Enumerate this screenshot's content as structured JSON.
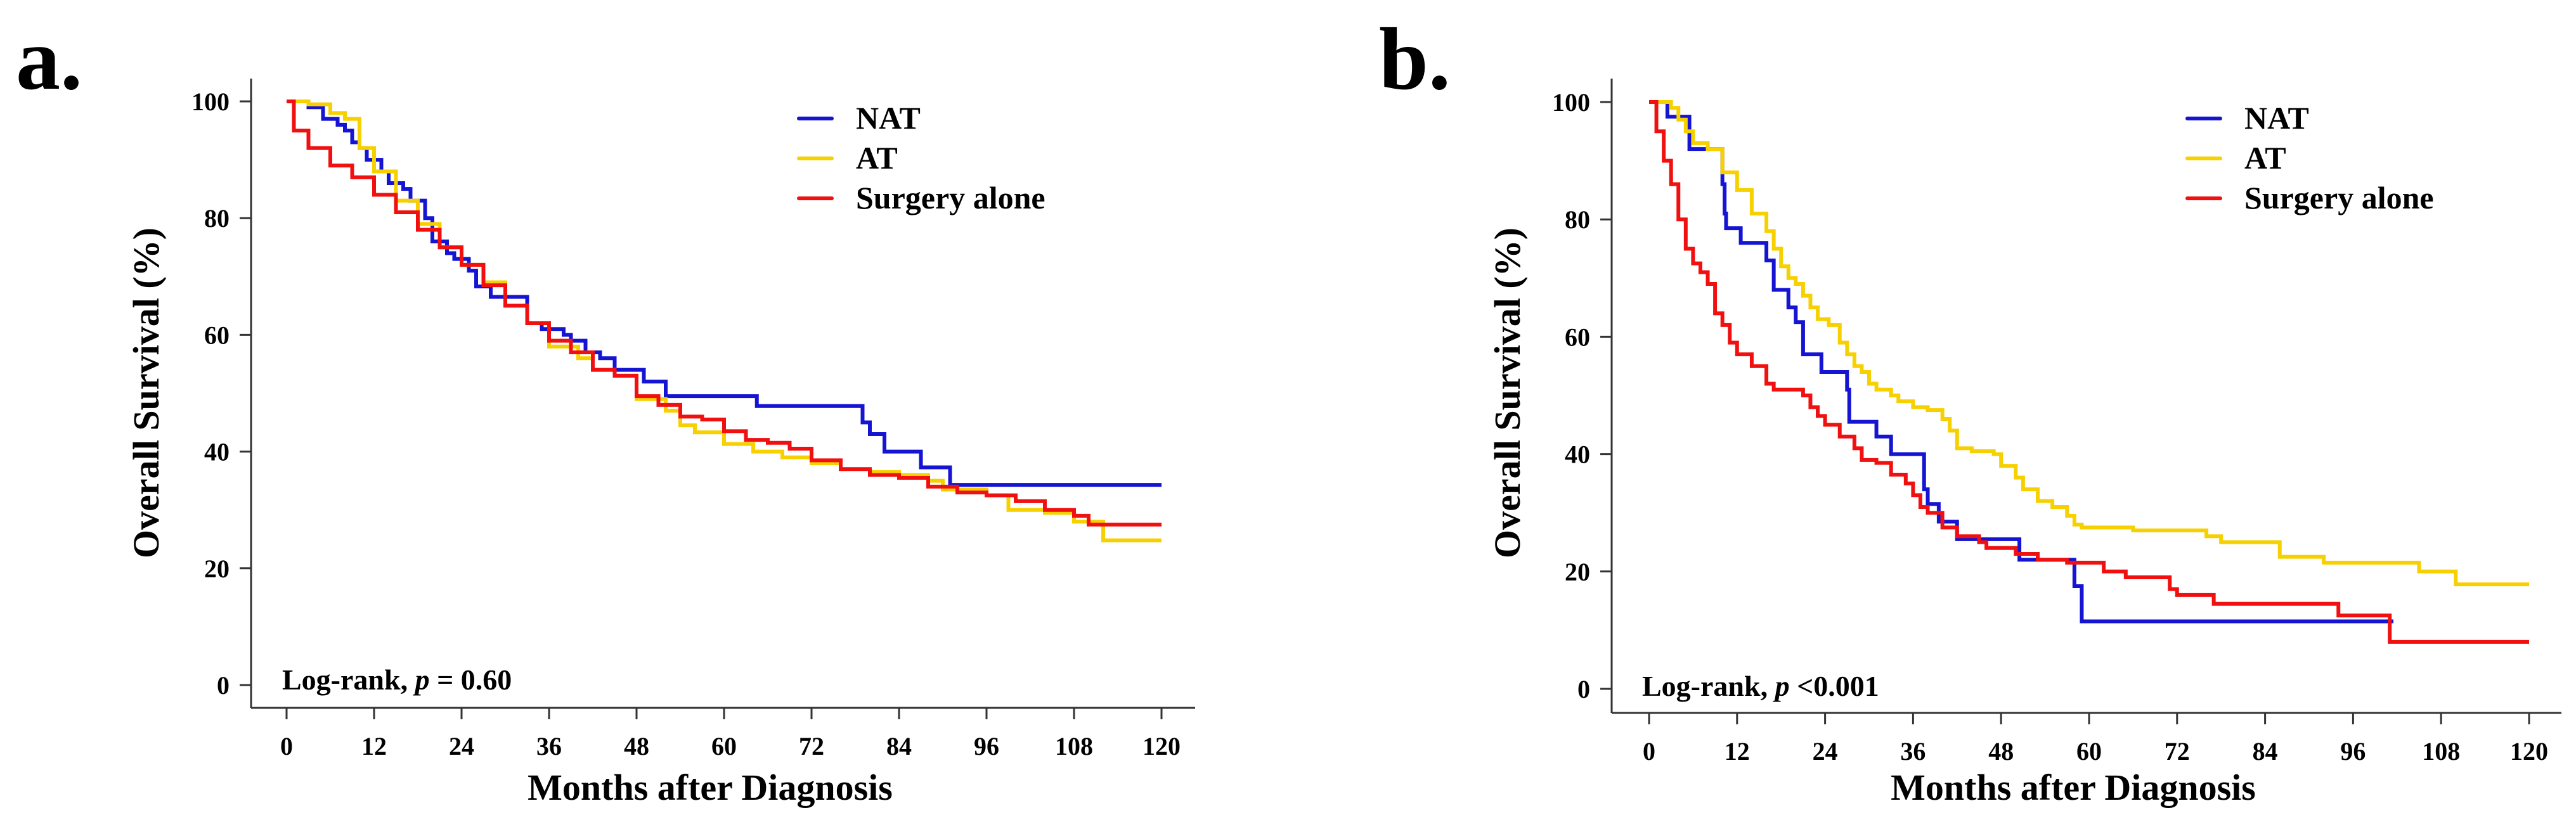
{
  "colors": {
    "NAT": "#1414d2",
    "AT": "#f7d000",
    "Surgery alone": "#f01010",
    "axis": "#333333"
  },
  "chart_data": [
    {
      "type": "line",
      "panel_label": "a.",
      "title": "",
      "xlabel": "Months after Diagnosis",
      "ylabel": "Overall Survival (%)",
      "xlim": [
        0,
        120
      ],
      "ylim": [
        0,
        100
      ],
      "xticks": [
        0,
        12,
        24,
        36,
        48,
        60,
        72,
        84,
        96,
        108,
        120
      ],
      "yticks": [
        0,
        20,
        40,
        60,
        80,
        100
      ],
      "grid": false,
      "legend_position": "top-right",
      "annotation": {
        "prefix": "Log-rank, ",
        "p": "p",
        "suffix": " = 0.60"
      },
      "series": [
        {
          "name": "NAT",
          "step": true,
          "points": [
            [
              0,
              100
            ],
            [
              2.5,
              100
            ],
            [
              3,
              99
            ],
            [
              5,
              97
            ],
            [
              7,
              96
            ],
            [
              8,
              95
            ],
            [
              9,
              93
            ],
            [
              10,
              92
            ],
            [
              11,
              90
            ],
            [
              13,
              88
            ],
            [
              14,
              86
            ],
            [
              16,
              85
            ],
            [
              17,
              83
            ],
            [
              19,
              80
            ],
            [
              20,
              76
            ],
            [
              22,
              74
            ],
            [
              23,
              73
            ],
            [
              25,
              71
            ],
            [
              26,
              68.3
            ],
            [
              28,
              66.5
            ],
            [
              33,
              62
            ],
            [
              35,
              61
            ],
            [
              38,
              60
            ],
            [
              39,
              59
            ],
            [
              41,
              57
            ],
            [
              43,
              56
            ],
            [
              45,
              54
            ],
            [
              49,
              52
            ],
            [
              52,
              49.5
            ],
            [
              64.5,
              47.8
            ],
            [
              79,
              45
            ],
            [
              80,
              43
            ],
            [
              82,
              40
            ],
            [
              87,
              37.3
            ],
            [
              91,
              34.3
            ],
            [
              120,
              34.3
            ]
          ]
        },
        {
          "name": "AT",
          "step": true,
          "points": [
            [
              0,
              100
            ],
            [
              3,
              99.5
            ],
            [
              6,
              98
            ],
            [
              8,
              97
            ],
            [
              10,
              92
            ],
            [
              12,
              88
            ],
            [
              15,
              83
            ],
            [
              18,
              79
            ],
            [
              21,
              75
            ],
            [
              24,
              72
            ],
            [
              27,
              69
            ],
            [
              30,
              65
            ],
            [
              33,
              62
            ],
            [
              36,
              58
            ],
            [
              40,
              56
            ],
            [
              42,
              54
            ],
            [
              45,
              53
            ],
            [
              48,
              49
            ],
            [
              52,
              47
            ],
            [
              54,
              44.5
            ],
            [
              56,
              43.3
            ],
            [
              60,
              41.3
            ],
            [
              64,
              40
            ],
            [
              68,
              39
            ],
            [
              72,
              38
            ],
            [
              76,
              37
            ],
            [
              80,
              36.5
            ],
            [
              84,
              36
            ],
            [
              88,
              35
            ],
            [
              90,
              33.5
            ],
            [
              96,
              32.5
            ],
            [
              99,
              30
            ],
            [
              104,
              29.5
            ],
            [
              108,
              28
            ],
            [
              112,
              24.8
            ],
            [
              120,
              24.8
            ]
          ]
        },
        {
          "name": "Surgery alone",
          "step": true,
          "points": [
            [
              0,
              100
            ],
            [
              1,
              95
            ],
            [
              3,
              92
            ],
            [
              6,
              89
            ],
            [
              9,
              87
            ],
            [
              12,
              84
            ],
            [
              15,
              81
            ],
            [
              18,
              78
            ],
            [
              21,
              75
            ],
            [
              24,
              72
            ],
            [
              27,
              68.5
            ],
            [
              30,
              65
            ],
            [
              33,
              62
            ],
            [
              36,
              59
            ],
            [
              39,
              57
            ],
            [
              42,
              54
            ],
            [
              45,
              53
            ],
            [
              48,
              49.5
            ],
            [
              51,
              48
            ],
            [
              54,
              46
            ],
            [
              57,
              45.5
            ],
            [
              60,
              43.5
            ],
            [
              63,
              42
            ],
            [
              66,
              41.5
            ],
            [
              69,
              40.5
            ],
            [
              72,
              38.5
            ],
            [
              76,
              37
            ],
            [
              80,
              36
            ],
            [
              84,
              35.5
            ],
            [
              88,
              34
            ],
            [
              92,
              33
            ],
            [
              96,
              32.5
            ],
            [
              100,
              31.5
            ],
            [
              104,
              30
            ],
            [
              108,
              29
            ],
            [
              110,
              27.5
            ],
            [
              120,
              27.5
            ]
          ]
        }
      ]
    },
    {
      "type": "line",
      "panel_label": "b.",
      "title": "",
      "xlabel": "Months after Diagnosis",
      "ylabel": "Overall Survival (%)",
      "xlim": [
        0,
        120
      ],
      "ylim": [
        0,
        100
      ],
      "xticks": [
        0,
        12,
        24,
        36,
        48,
        60,
        72,
        84,
        96,
        108,
        120
      ],
      "yticks": [
        0,
        20,
        40,
        60,
        80,
        100
      ],
      "grid": false,
      "legend_position": "top-right",
      "annotation": {
        "prefix": "Log-rank, ",
        "p": "p",
        "suffix": " <0.001"
      },
      "series": [
        {
          "name": "NAT",
          "step": true,
          "points": [
            [
              0,
              100
            ],
            [
              2.5,
              97.5
            ],
            [
              5.5,
              92
            ],
            [
              10,
              86
            ],
            [
              10.3,
              81
            ],
            [
              10.5,
              78.5
            ],
            [
              12.5,
              76
            ],
            [
              16,
              73
            ],
            [
              17,
              68
            ],
            [
              19,
              65
            ],
            [
              20,
              62.5
            ],
            [
              21,
              57
            ],
            [
              23.5,
              54
            ],
            [
              27,
              51
            ],
            [
              27.3,
              45.5
            ],
            [
              31,
              43
            ],
            [
              33,
              40
            ],
            [
              37.5,
              34
            ],
            [
              38,
              31.5
            ],
            [
              39.5,
              28.5
            ],
            [
              42,
              25.5
            ],
            [
              50.5,
              22
            ],
            [
              58,
              17.5
            ],
            [
              59,
              11.5
            ],
            [
              101.5,
              11.5
            ]
          ]
        },
        {
          "name": "AT",
          "step": true,
          "points": [
            [
              0,
              100
            ],
            [
              3,
              99
            ],
            [
              4,
              97
            ],
            [
              5,
              95
            ],
            [
              6,
              93
            ],
            [
              8,
              92
            ],
            [
              10,
              88
            ],
            [
              12,
              85
            ],
            [
              14,
              81
            ],
            [
              16,
              78
            ],
            [
              17,
              75
            ],
            [
              18,
              72
            ],
            [
              19,
              70
            ],
            [
              20,
              69
            ],
            [
              21,
              67
            ],
            [
              22,
              65
            ],
            [
              23,
              63
            ],
            [
              24.5,
              62
            ],
            [
              26,
              59
            ],
            [
              27,
              57
            ],
            [
              28,
              55
            ],
            [
              29,
              54
            ],
            [
              30,
              52
            ],
            [
              31,
              51
            ],
            [
              33,
              50
            ],
            [
              34,
              49
            ],
            [
              36,
              48
            ],
            [
              38,
              47.5
            ],
            [
              40,
              46
            ],
            [
              41,
              44
            ],
            [
              42,
              41
            ],
            [
              44,
              40.5
            ],
            [
              47,
              40
            ],
            [
              48,
              38
            ],
            [
              50,
              36
            ],
            [
              51,
              34
            ],
            [
              53,
              32
            ],
            [
              55,
              31
            ],
            [
              57,
              29.5
            ],
            [
              58,
              28
            ],
            [
              59,
              27.5
            ],
            [
              66,
              27
            ],
            [
              76,
              26
            ],
            [
              78,
              25
            ],
            [
              86,
              22.5
            ],
            [
              92,
              21.5
            ],
            [
              105,
              20
            ],
            [
              110,
              17.8
            ],
            [
              120,
              17.8
            ]
          ]
        },
        {
          "name": "Surgery alone",
          "step": true,
          "points": [
            [
              0,
              100
            ],
            [
              1,
              95
            ],
            [
              2,
              90
            ],
            [
              3,
              86
            ],
            [
              4,
              80
            ],
            [
              5,
              75
            ],
            [
              6,
              72.5
            ],
            [
              7,
              71
            ],
            [
              8,
              69
            ],
            [
              9,
              64
            ],
            [
              10,
              62
            ],
            [
              11,
              59
            ],
            [
              12,
              57
            ],
            [
              14,
              55
            ],
            [
              16,
              52
            ],
            [
              17,
              51
            ],
            [
              21,
              50
            ],
            [
              22,
              48
            ],
            [
              23,
              46.5
            ],
            [
              24,
              45
            ],
            [
              26,
              43
            ],
            [
              28,
              41
            ],
            [
              29,
              39
            ],
            [
              31,
              38.5
            ],
            [
              33,
              36.5
            ],
            [
              35,
              35
            ],
            [
              36,
              33
            ],
            [
              37,
              31
            ],
            [
              38,
              30
            ],
            [
              40,
              27.5
            ],
            [
              42,
              26
            ],
            [
              45,
              25
            ],
            [
              46,
              24
            ],
            [
              50,
              23
            ],
            [
              53,
              22
            ],
            [
              57,
              21.5
            ],
            [
              62,
              20
            ],
            [
              65,
              19
            ],
            [
              71,
              17
            ],
            [
              72,
              16
            ],
            [
              77,
              14.5
            ],
            [
              94,
              12.5
            ],
            [
              101,
              8
            ],
            [
              120,
              8
            ]
          ]
        }
      ]
    }
  ]
}
